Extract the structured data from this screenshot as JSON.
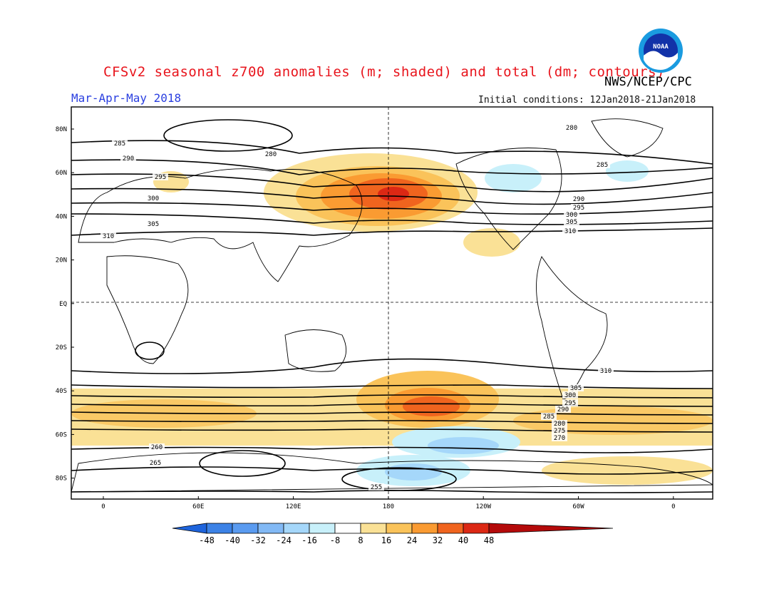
{
  "header": {
    "title": "CFSv2 seasonal z700 anomalies (m; shaded) and total (dm; contours)",
    "org": "NWS/NCEP/CPC",
    "season": "Mar-Apr-May 2018",
    "initial_conditions": "Initial conditions: 12Jan2018-21Jan2018",
    "logo_text": "NOAA"
  },
  "map": {
    "lat_labels": [
      "80N",
      "60N",
      "40N",
      "20N",
      "EQ",
      "20S",
      "40S",
      "60S",
      "80S"
    ],
    "lon_labels": [
      "0",
      "60E",
      "120E",
      "180",
      "120W",
      "60W",
      "0"
    ],
    "contour_labels": [
      "280",
      "285",
      "290",
      "295",
      "300",
      "305",
      "310",
      "285",
      "280",
      "290",
      "295",
      "300",
      "305",
      "310",
      "255",
      "260",
      "265",
      "270",
      "275",
      "280",
      "285",
      "290",
      "295",
      "300",
      "305",
      "310"
    ]
  },
  "colorbar": {
    "ticks": [
      "-48",
      "-40",
      "-32",
      "-24",
      "-16",
      "-8",
      "8",
      "16",
      "24",
      "32",
      "40",
      "48"
    ],
    "colors": [
      "#1e64dc",
      "#3c82e6",
      "#5a9bf0",
      "#82b9f5",
      "#a5d7fa",
      "#c8f0fa",
      "#ffffff",
      "#fae196",
      "#fac35a",
      "#fa9b32",
      "#f0641e",
      "#dc2814",
      "#b40a0a"
    ]
  }
}
